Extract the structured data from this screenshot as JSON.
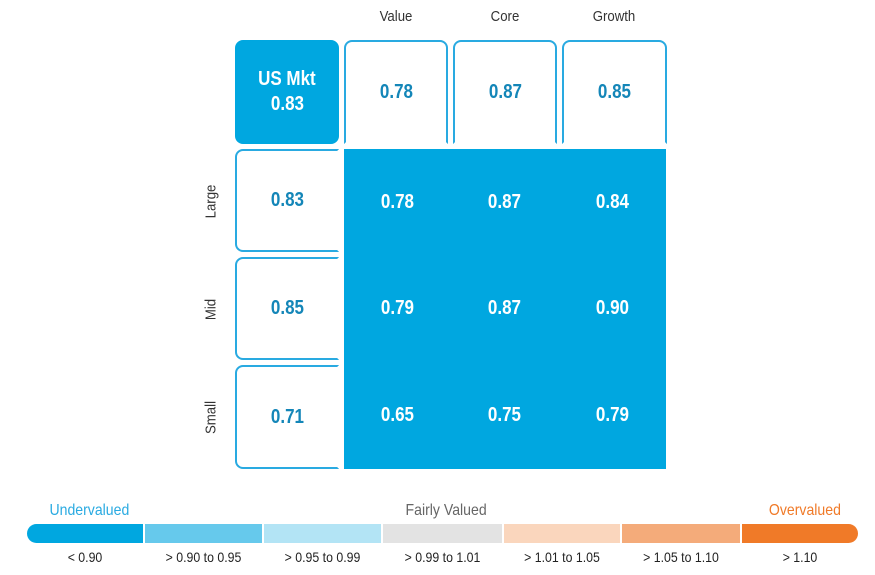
{
  "chart_data": {
    "type": "heatmap",
    "columns": [
      "Value",
      "Core",
      "Growth"
    ],
    "rows": [
      "Large",
      "Mid",
      "Small"
    ],
    "corner": {
      "label": "US Mkt",
      "value": "0.83"
    },
    "column_totals": [
      "0.78",
      "0.87",
      "0.85"
    ],
    "row_totals": [
      "0.83",
      "0.85",
      "0.71"
    ],
    "values": [
      [
        "0.78",
        "0.87",
        "0.84"
      ],
      [
        "0.79",
        "0.87",
        "0.90"
      ],
      [
        "0.65",
        "0.75",
        "0.79"
      ]
    ],
    "legend": {
      "categories": {
        "under": "Undervalued",
        "fair": "Fairly Valued",
        "over": "Overvalued"
      },
      "bins": [
        {
          "label": "< 0.90",
          "color": "#00a7e0"
        },
        {
          "label": "> 0.90 to 0.95",
          "color": "#66c9ec"
        },
        {
          "label": "> 0.95 to 0.99",
          "color": "#b3e4f5"
        },
        {
          "label": "> 0.99 to 1.01",
          "color": "#e3e3e3"
        },
        {
          "label": "> 1.01 to 1.05",
          "color": "#fad6bd"
        },
        {
          "label": "> 1.05 to 1.10",
          "color": "#f4ab7a"
        },
        {
          "label": "> 1.10",
          "color": "#f07a28"
        }
      ],
      "colors": {
        "under": "#29aae1",
        "fair": "#666666",
        "over": "#f07a28"
      }
    }
  }
}
